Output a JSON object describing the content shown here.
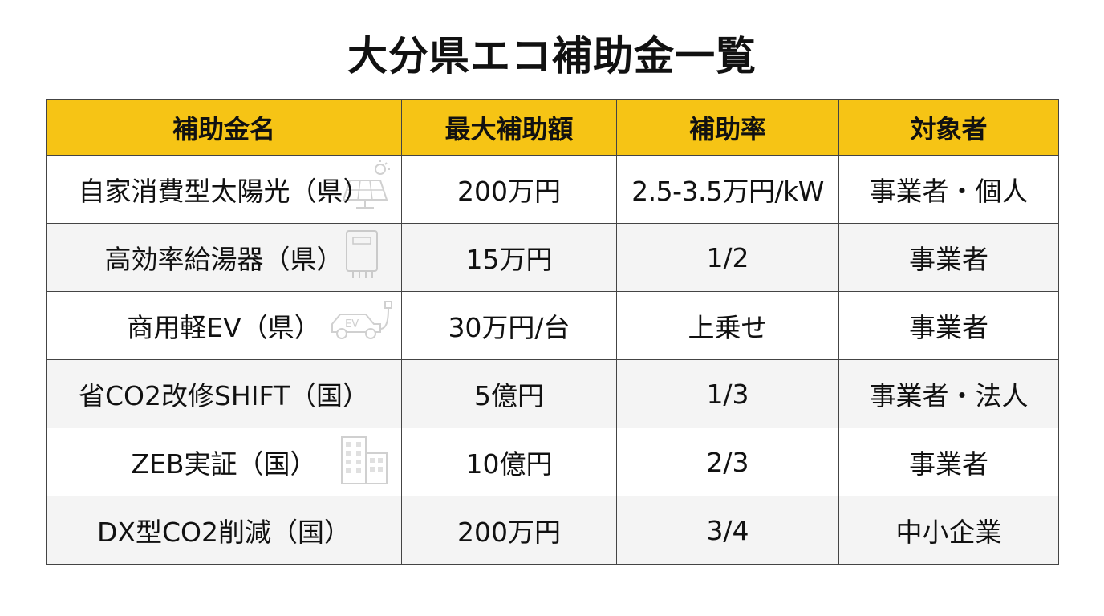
{
  "title": "大分県エコ補助金一覧",
  "columns": [
    "補助金名",
    "最大補助額",
    "補助率",
    "対象者"
  ],
  "rows": [
    {
      "name": "自家消費型太陽光（県）",
      "max": "200万円",
      "rate": "2.5-3.5万円/kW",
      "target": "事業者・個人",
      "icon": "solar-panel-icon"
    },
    {
      "name": "高効率給湯器（県）",
      "max": "15万円",
      "rate": "1/2",
      "target": "事業者",
      "icon": "water-heater-icon"
    },
    {
      "name": "商用軽EV（県）",
      "max": "30万円/台",
      "rate": "上乗せ",
      "target": "事業者",
      "icon": "ev-car-icon",
      "icon_text": "EV"
    },
    {
      "name": "省CO2改修SHIFT（国）",
      "max": "5億円",
      "rate": "1/3",
      "target": "事業者・法人",
      "icon": ""
    },
    {
      "name": "ZEB実証（国）",
      "max": "10億円",
      "rate": "2/3",
      "target": "事業者",
      "icon": "building-icon"
    },
    {
      "name": "DX型CO2削減（国）",
      "max": "200万円",
      "rate": "3/4",
      "target": "中小企業",
      "icon": ""
    }
  ]
}
